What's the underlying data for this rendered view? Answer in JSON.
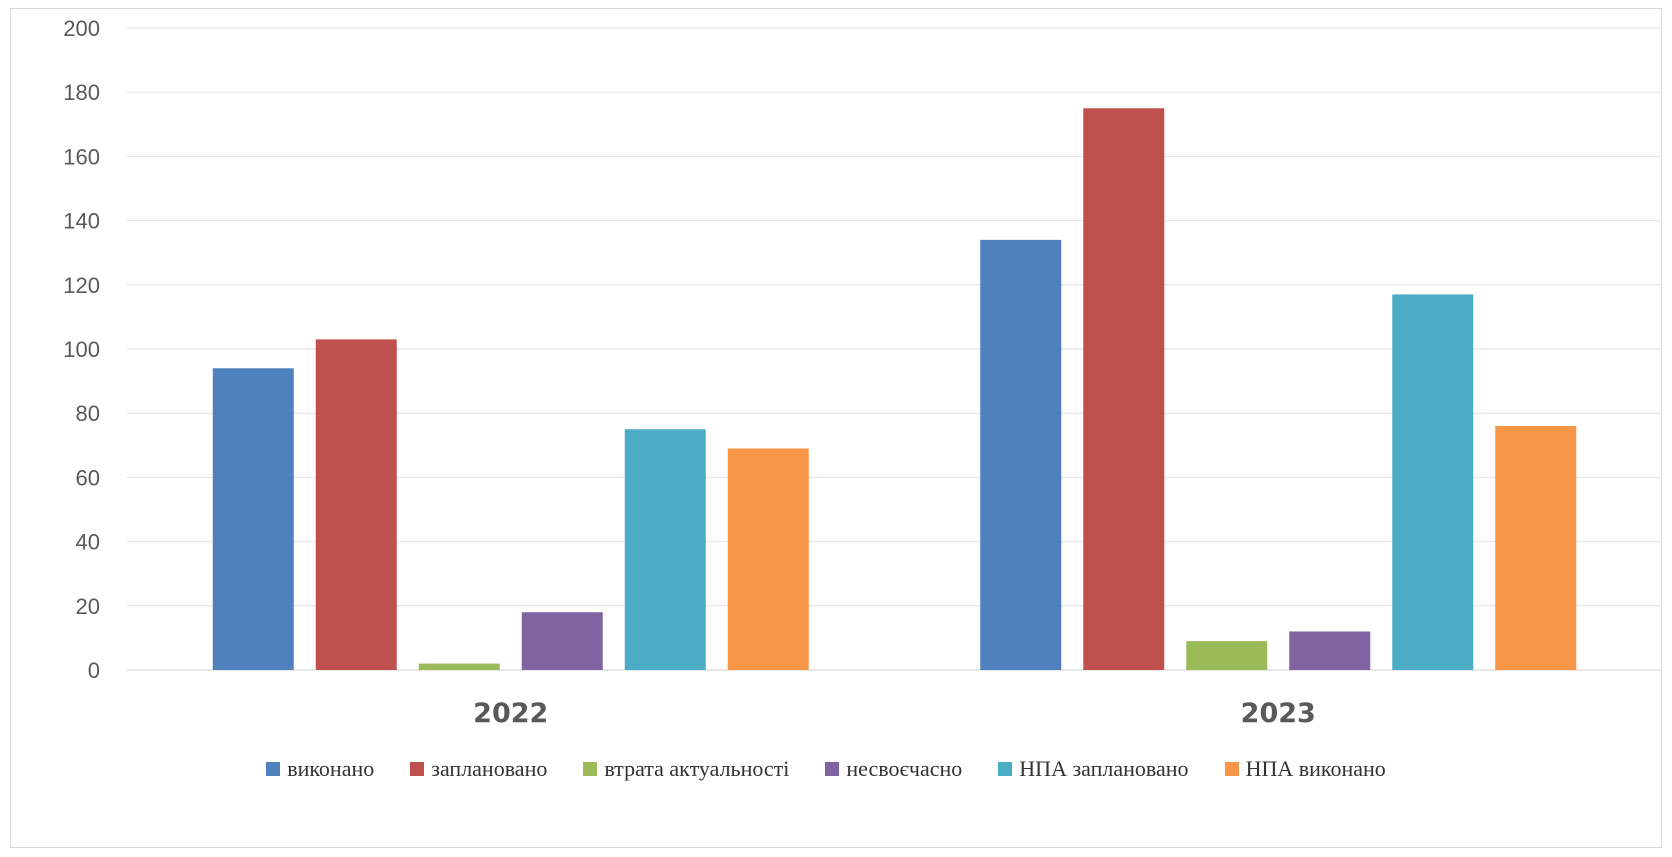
{
  "chart_data": {
    "type": "bar",
    "categories": [
      "2022",
      "2023"
    ],
    "ylim": [
      0,
      200
    ],
    "yticks": [
      0,
      20,
      40,
      60,
      80,
      100,
      120,
      140,
      160,
      180,
      200
    ],
    "grid": true,
    "legend_position": "bottom",
    "series": [
      {
        "name": "виконано",
        "color": "#4f81bd",
        "values": [
          94,
          134
        ]
      },
      {
        "name": "заплановано",
        "color": "#c0504d",
        "values": [
          103,
          175
        ]
      },
      {
        "name": "втрата актуальності",
        "color": "#9bbb59",
        "values": [
          2,
          9
        ]
      },
      {
        "name": "несвоєчасно",
        "color": "#8064a2",
        "values": [
          18,
          12
        ]
      },
      {
        "name": "НПА заплановано",
        "color": "#4bacc6",
        "values": [
          75,
          117
        ]
      },
      {
        "name": "НПА виконано",
        "color": "#f79646",
        "values": [
          69,
          76
        ]
      }
    ]
  }
}
